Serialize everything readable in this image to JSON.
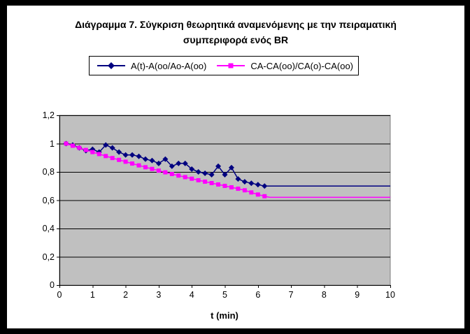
{
  "title": {
    "line1": "Διάγραμμα 7. Σύγκριση θεωρητικά αναμενόμενης με την πειραματική",
    "line2": "συμπεριφορά ενός BR"
  },
  "legend": {
    "items": [
      {
        "label": "A(t)-A(oo/Ao-A(oo)",
        "color": "#000080",
        "marker": "diamond"
      },
      {
        "label": "CA-CA(oo)/CA(o)-CA(oo)",
        "color": "#FF00FF",
        "marker": "square"
      }
    ]
  },
  "chart_data": {
    "type": "line",
    "title": "Διάγραμμα 7. Σύγκριση θεωρητικά αναμενόμενης με την πειραματική συμπεριφορά ενός BR",
    "xlabel": "t (min)",
    "ylabel": "",
    "xlim": [
      0,
      10
    ],
    "ylim": [
      0,
      1.2
    ],
    "grid": "horizontal",
    "legend_position": "top-boxed",
    "plot_bg": "#C0C0C0",
    "x_ticks": {
      "values": [
        0,
        1,
        2,
        3,
        4,
        5,
        6,
        7,
        8,
        9,
        10
      ],
      "labels": [
        "0",
        "1",
        "2",
        "3",
        "4",
        "5",
        "6",
        "7",
        "8",
        "9",
        "10"
      ]
    },
    "y_ticks": {
      "values": [
        0,
        0.2,
        0.4,
        0.6,
        0.8,
        1.0,
        1.2
      ],
      "labels": [
        "0",
        "0,2",
        "0,4",
        "0,6",
        "0,8",
        "1",
        "1,2"
      ]
    },
    "x": [
      0.2,
      0.4,
      0.6,
      0.8,
      1.0,
      1.2,
      1.4,
      1.6,
      1.8,
      2.0,
      2.2,
      2.4,
      2.6,
      2.8,
      3.0,
      3.2,
      3.4,
      3.6,
      3.8,
      4.0,
      4.2,
      4.4,
      4.6,
      4.8,
      5.0,
      5.2,
      5.4,
      5.6,
      5.8,
      6.0,
      6.2
    ],
    "series": [
      {
        "name": "A(t)-A(oo/Ao-A(oo)",
        "color": "#000080",
        "marker": "diamond",
        "values": [
          1.0,
          0.99,
          0.97,
          0.95,
          0.96,
          0.94,
          0.99,
          0.97,
          0.94,
          0.92,
          0.92,
          0.91,
          0.89,
          0.88,
          0.86,
          0.89,
          0.84,
          0.86,
          0.86,
          0.82,
          0.8,
          0.79,
          0.78,
          0.84,
          0.78,
          0.83,
          0.75,
          0.73,
          0.72,
          0.71,
          0.7
        ],
        "flat_extension": {
          "from_x": 6.35,
          "to_x": 10,
          "value": 0.7
        }
      },
      {
        "name": "CA-CA(oo)/CA(o)-CA(oo)",
        "color": "#FF00FF",
        "marker": "square",
        "values": [
          1.0,
          0.985,
          0.97,
          0.955,
          0.94,
          0.926,
          0.912,
          0.898,
          0.885,
          0.872,
          0.859,
          0.846,
          0.833,
          0.821,
          0.809,
          0.797,
          0.785,
          0.774,
          0.763,
          0.752,
          0.741,
          0.731,
          0.721,
          0.711,
          0.701,
          0.691,
          0.681,
          0.67,
          0.655,
          0.64,
          0.628
        ],
        "flat_extension": {
          "from_x": 6.35,
          "to_x": 10,
          "value": 0.62
        }
      }
    ]
  }
}
